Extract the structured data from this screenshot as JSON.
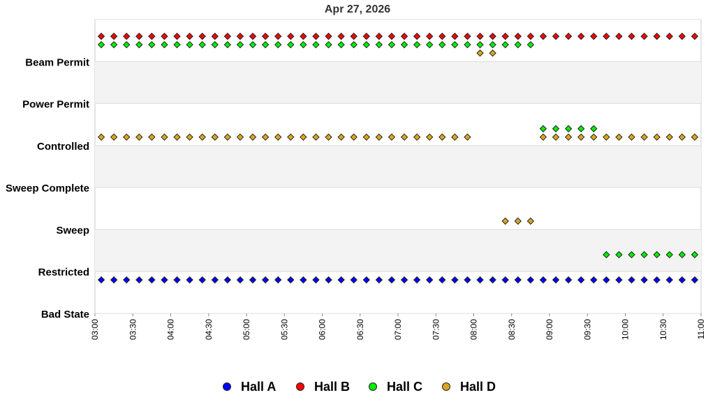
{
  "chart_data": {
    "type": "scatter",
    "title": "Apr 27, 2026",
    "xlabel": "",
    "ylabel": "",
    "x_range": [
      "03:00",
      "11:00"
    ],
    "x_ticks": [
      "03:00",
      "03:30",
      "04:00",
      "04:30",
      "05:00",
      "05:30",
      "06:00",
      "06:30",
      "07:00",
      "07:30",
      "08:00",
      "08:30",
      "09:00",
      "09:30",
      "10:00",
      "10:30",
      "11:00"
    ],
    "y_categories": [
      "Bad State",
      "Restricted",
      "Sweep",
      "Sweep Complete",
      "Controlled",
      "Power Permit",
      "Beam Permit"
    ],
    "grid": true,
    "legend_position": "bottom",
    "series": [
      {
        "name": "Hall A",
        "color": "#0000ff",
        "segments": [
          {
            "state": "Restricted",
            "offset": -0.2,
            "start": "03:05",
            "end": "10:55"
          }
        ]
      },
      {
        "name": "Hall B",
        "color": "#ff0000",
        "segments": [
          {
            "state": "Beam Permit",
            "offset": 0.6,
            "start": "03:05",
            "end": "10:55"
          }
        ]
      },
      {
        "name": "Hall C",
        "color": "#00ee00",
        "segments": [
          {
            "state": "Beam Permit",
            "offset": 0.4,
            "start": "03:05",
            "end": "08:45"
          },
          {
            "state": "Controlled",
            "offset": 0.4,
            "start": "08:55",
            "end": "09:35"
          },
          {
            "state": "Restricted",
            "offset": 0.4,
            "start": "09:45",
            "end": "10:55"
          }
        ]
      },
      {
        "name": "Hall D",
        "color": "#daa520",
        "segments": [
          {
            "state": "Controlled",
            "offset": 0.2,
            "start": "03:05",
            "end": "07:55"
          },
          {
            "state": "Beam Permit",
            "offset": 0.2,
            "start": "08:05",
            "end": "08:15"
          },
          {
            "state": "Sweep",
            "offset": 0.2,
            "start": "08:25",
            "end": "08:45"
          },
          {
            "state": "Controlled",
            "offset": 0.2,
            "start": "08:55",
            "end": "10:55"
          }
        ]
      }
    ]
  }
}
